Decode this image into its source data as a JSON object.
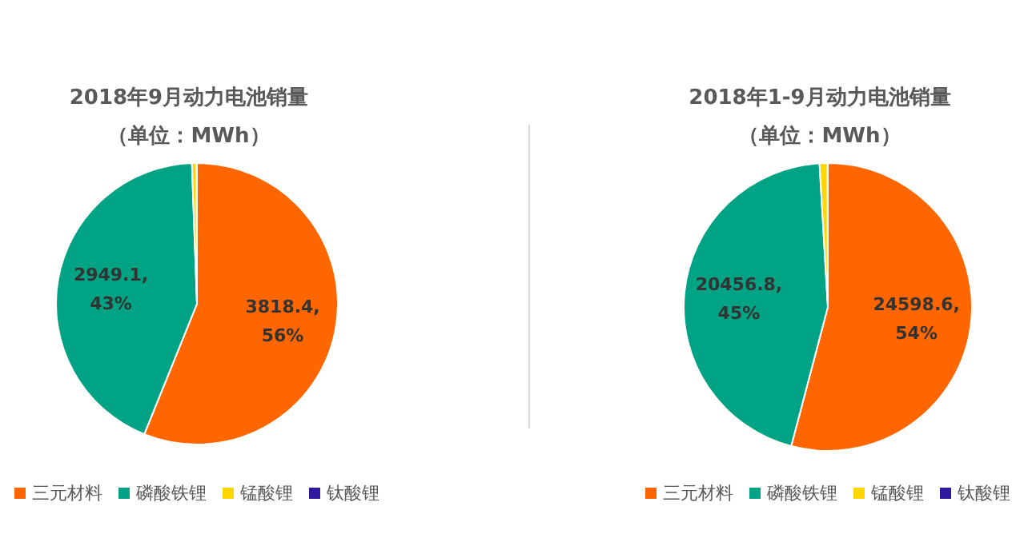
{
  "chart_data": [
    {
      "type": "pie",
      "title": "2018年9月动力电池销量",
      "subtitle": "（单位：MWh）",
      "categories": [
        "三元材料",
        "磷酸铁锂",
        "锰酸锂",
        "钛酸锂"
      ],
      "values": [
        3818.4,
        2949.1,
        37,
        2
      ],
      "colors": [
        "#ff6600",
        "#00a383",
        "#ffd700",
        "#2e1a9e"
      ],
      "value_labels": [
        "3818.4,\n56%",
        "2949.1,\n43%",
        null,
        null
      ],
      "legend": "bottom"
    },
    {
      "type": "pie",
      "title": "2018年1-9月动力电池销量",
      "subtitle": "（单位：MWh）",
      "categories": [
        "三元材料",
        "磷酸铁锂",
        "锰酸锂",
        "钛酸锂"
      ],
      "values": [
        24598.6,
        20456.8,
        410,
        10
      ],
      "colors": [
        "#ff6600",
        "#00a383",
        "#ffd700",
        "#2e1a9e"
      ],
      "value_labels": [
        "24598.6,\n54%",
        "20456.8,\n45%",
        null,
        null
      ],
      "legend": "bottom"
    }
  ]
}
